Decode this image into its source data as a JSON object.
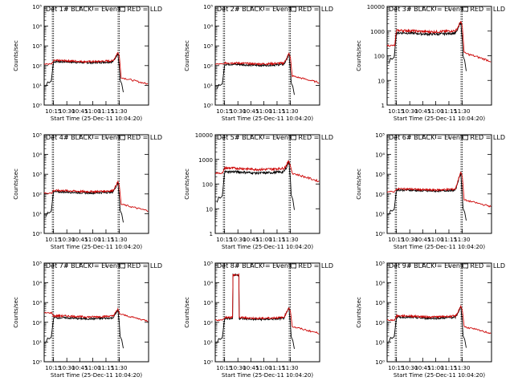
{
  "chart_data": [
    {
      "type": "line",
      "title": "Det 1# BLACK = Events, RED = LLD",
      "xlabel": "Start Time (25-Dec-11 10:04:20)",
      "ylabel": "Counts/sec",
      "yscale": "log",
      "ylim": [
        1,
        100000
      ],
      "yticks": [
        "10⁰",
        "10¹",
        "10²",
        "10³",
        "10⁴",
        "10⁵"
      ],
      "xticks": [
        "10:15",
        "10:30",
        "10:45",
        "11:00",
        "11:15",
        "11:30"
      ],
      "grid": false,
      "series": [
        {
          "color": "#000000",
          "baseline": 150,
          "pre": 0,
          "post": 0
        },
        {
          "color": "#cc0000",
          "baseline": 170,
          "pre": 120,
          "post": 25
        }
      ],
      "peak": 480,
      "spike": null
    },
    {
      "type": "line",
      "title": "Det 2# BLACK = Events, RED = LLD",
      "xlabel": "Start Time (25-Dec-11 10:04:20)",
      "ylabel": "Counts/sec",
      "yscale": "log",
      "ylim": [
        1,
        100000
      ],
      "yticks": [
        "10⁰",
        "10¹",
        "10²",
        "10³",
        "10⁴",
        "10⁵"
      ],
      "xticks": [
        "10:15",
        "10:30",
        "10:45",
        "11:00",
        "11:15",
        "11:30"
      ],
      "grid": false,
      "series": [
        {
          "color": "#000000",
          "baseline": 110,
          "pre": 0,
          "post": 0
        },
        {
          "color": "#cc0000",
          "baseline": 130,
          "pre": 120,
          "post": 30
        }
      ],
      "peak": 420,
      "spike": null
    },
    {
      "type": "line",
      "title": "Det 3# BLACK = Events, RED = LLD",
      "xlabel": "Start Time (25-Dec-11 10:04:20)",
      "ylabel": "Counts/sec",
      "yscale": "log",
      "ylim": [
        1,
        10000
      ],
      "yticks": [
        "1",
        "10",
        "100",
        "1000",
        "10000"
      ],
      "xticks": [
        "10:15",
        "10:30",
        "10:45",
        "11:00",
        "11:15",
        "11:30"
      ],
      "grid": false,
      "series": [
        {
          "color": "#000000",
          "baseline": 800,
          "pre": 0,
          "post": 0
        },
        {
          "color": "#cc0000",
          "baseline": 1000,
          "pre": 260,
          "post": 130
        }
      ],
      "peak": 2600,
      "spike": null
    },
    {
      "type": "line",
      "title": "Det 4# BLACK = Events, RED = LLD",
      "xlabel": "Start Time (25-Dec-11 10:04:20)",
      "ylabel": "Counts/sec",
      "yscale": "log",
      "ylim": [
        1,
        100000
      ],
      "yticks": [
        "10⁰",
        "10¹",
        "10²",
        "10³",
        "10⁴",
        "10⁵"
      ],
      "xticks": [
        "10:15",
        "10:30",
        "10:45",
        "11:00",
        "11:15",
        "11:30"
      ],
      "grid": false,
      "series": [
        {
          "color": "#000000",
          "baseline": 120,
          "pre": 0,
          "post": 0
        },
        {
          "color": "#cc0000",
          "baseline": 140,
          "pre": 110,
          "post": 30
        }
      ],
      "peak": 420,
      "spike": null
    },
    {
      "type": "line",
      "title": "Det 5# BLACK = Events, RED = LLD",
      "xlabel": "Start Time (25-Dec-11 10:04:20)",
      "ylabel": "Counts/sec",
      "yscale": "log",
      "ylim": [
        1,
        10000
      ],
      "yticks": [
        "1",
        "10",
        "100",
        "1000",
        "10000"
      ],
      "xticks": [
        "10:15",
        "10:30",
        "10:45",
        "11:00",
        "11:15",
        "11:30"
      ],
      "grid": false,
      "series": [
        {
          "color": "#000000",
          "baseline": 300,
          "pre": 0,
          "post": 0
        },
        {
          "color": "#cc0000",
          "baseline": 420,
          "pre": 280,
          "post": 280
        }
      ],
      "peak": 900,
      "spike": null
    },
    {
      "type": "line",
      "title": "Det 6# BLACK = Events, RED = LLD",
      "xlabel": "Start Time (25-Dec-11 10:04:20)",
      "ylabel": "Counts/sec",
      "yscale": "log",
      "ylim": [
        1,
        100000
      ],
      "yticks": [
        "10⁰",
        "10¹",
        "10²",
        "10³",
        "10⁴",
        "10⁵"
      ],
      "xticks": [
        "10:15",
        "10:30",
        "10:45",
        "11:00",
        "11:15",
        "11:30"
      ],
      "grid": false,
      "series": [
        {
          "color": "#000000",
          "baseline": 150,
          "pre": 0,
          "post": 0
        },
        {
          "color": "#cc0000",
          "baseline": 170,
          "pre": 130,
          "post": 50
        }
      ],
      "peak": 1300,
      "spike": null
    },
    {
      "type": "line",
      "title": "Det 7# BLACK = Events, RED = LLD",
      "xlabel": "Start Time (25-Dec-11 10:04:20)",
      "ylabel": "Counts/sec",
      "yscale": "log",
      "ylim": [
        1,
        100000
      ],
      "yticks": [
        "10⁰",
        "10¹",
        "10²",
        "10³",
        "10⁴",
        "10⁵"
      ],
      "xticks": [
        "10:15",
        "10:30",
        "10:45",
        "11:00",
        "11:15",
        "11:30"
      ],
      "grid": false,
      "series": [
        {
          "color": "#000000",
          "baseline": 160,
          "pre": 0,
          "post": 0
        },
        {
          "color": "#cc0000",
          "baseline": 200,
          "pre": 300,
          "post": 250
        }
      ],
      "peak": 480,
      "spike": null
    },
    {
      "type": "line",
      "title": "Det 8# BLACK = Events, RED = LLD",
      "xlabel": "Start Time (25-Dec-11 10:04:20)",
      "ylabel": "Counts/sec",
      "yscale": "log",
      "ylim": [
        1,
        100000
      ],
      "yticks": [
        "10⁰",
        "10¹",
        "10²",
        "10³",
        "10⁴",
        "10⁵"
      ],
      "xticks": [
        "10:15",
        "10:30",
        "10:45",
        "11:00",
        "11:15",
        "11:30"
      ],
      "grid": false,
      "series": [
        {
          "color": "#000000",
          "baseline": 150,
          "pre": 0,
          "post": 0
        },
        {
          "color": "#cc0000",
          "baseline": 170,
          "pre": 130,
          "post": 60
        }
      ],
      "peak": 600,
      "spike": {
        "from": 0.17,
        "to": 0.23,
        "value": 25000
      }
    },
    {
      "type": "line",
      "title": "Det 9# BLACK = Events, RED = LLD",
      "xlabel": "Start Time (25-Dec-11 10:04:20)",
      "ylabel": "Counts/sec",
      "yscale": "log",
      "ylim": [
        1,
        100000
      ],
      "yticks": [
        "10⁰",
        "10¹",
        "10²",
        "10³",
        "10⁴",
        "10⁵"
      ],
      "xticks": [
        "10:15",
        "10:30",
        "10:45",
        "11:00",
        "11:15",
        "11:30"
      ],
      "grid": false,
      "series": [
        {
          "color": "#000000",
          "baseline": 170,
          "pre": 0,
          "post": 0
        },
        {
          "color": "#cc0000",
          "baseline": 200,
          "pre": 130,
          "post": 60
        }
      ],
      "peak": 700,
      "spike": null
    }
  ]
}
